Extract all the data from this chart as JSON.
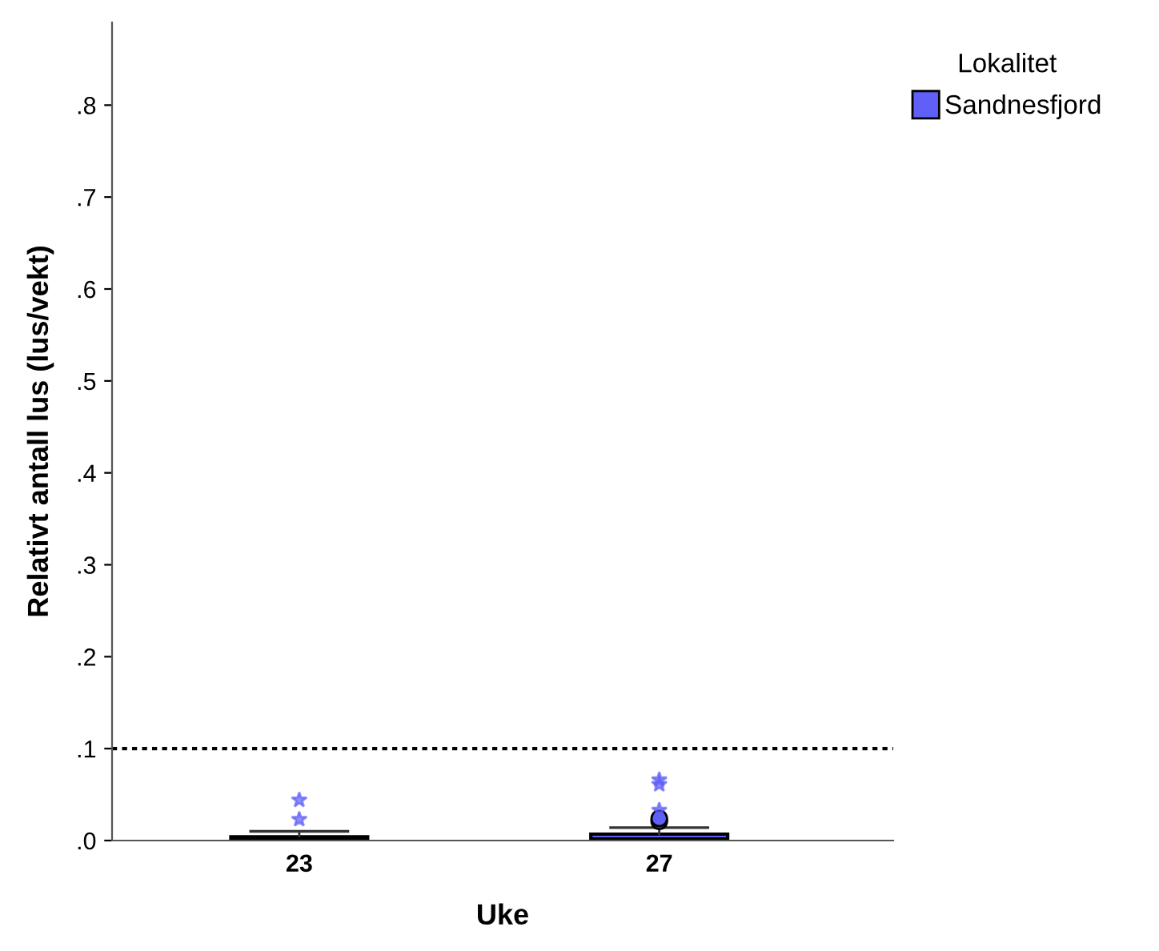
{
  "chart_data": {
    "type": "box",
    "xlabel": "Uke",
    "ylabel": "Relativt antall lus (lus/vekt)",
    "legend_title": "Lokalitet",
    "legend": "top right",
    "categories": [
      "23",
      "27"
    ],
    "series": [
      {
        "name": "Sandnesfjord",
        "color": "#6060f8",
        "boxes": [
          {
            "low": 0,
            "q1": 0,
            "median": 0.001,
            "q3": 0.004,
            "high": 0.01,
            "outliers": [
              0.023,
              0.044
            ]
          },
          {
            "low": 0,
            "q1": 0,
            "median": 0.001,
            "q3": 0.007,
            "high": 0.014,
            "outliers": [
              0.021,
              0.024,
              0.033,
              0.061,
              0.066
            ]
          }
        ]
      }
    ],
    "ylim": [
      0,
      0.89
    ],
    "yticks": [
      {
        "value": 0,
        "label": ".0"
      },
      {
        "value": 0.1,
        "label": ".1"
      },
      {
        "value": 0.2,
        "label": ".2"
      },
      {
        "value": 0.3,
        "label": ".3"
      },
      {
        "value": 0.4,
        "label": ".4"
      },
      {
        "value": 0.5,
        "label": ".5"
      },
      {
        "value": 0.6,
        "label": ".6"
      },
      {
        "value": 0.7,
        "label": ".7"
      },
      {
        "value": 0.8,
        "label": ".8"
      }
    ],
    "ref_lines": [
      {
        "axis": "y",
        "value": 0.1,
        "color": "#000000",
        "line_style": "dotted"
      }
    ],
    "grid": false
  }
}
